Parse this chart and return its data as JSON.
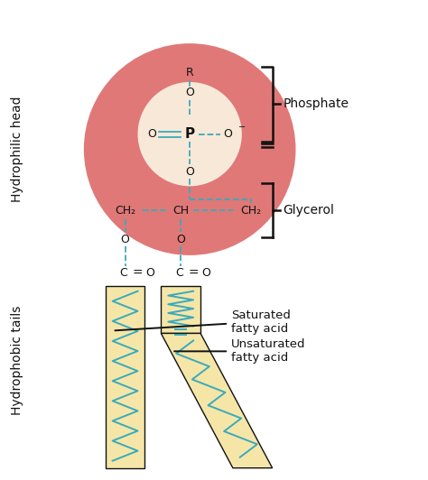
{
  "bg_color": "#ffffff",
  "head_circle_color": "#e07878",
  "head_inner_circle_color": "#f8e8d8",
  "bond_color": "#3aaabb",
  "text_color": "#111111",
  "tail_fill_color": "#f5e6a8",
  "tail_line_color": "#3aaabb",
  "bracket_color": "#111111",
  "label_phosphate": "Phosphate",
  "label_glycerol": "Glycerol",
  "label_saturated": "Saturated\nfatty acid",
  "label_unsaturated": "Unsaturated\nfatty acid",
  "label_hydrophilic": "Hydrophilic head",
  "label_hydrophobic": "Hydrophobic tails"
}
